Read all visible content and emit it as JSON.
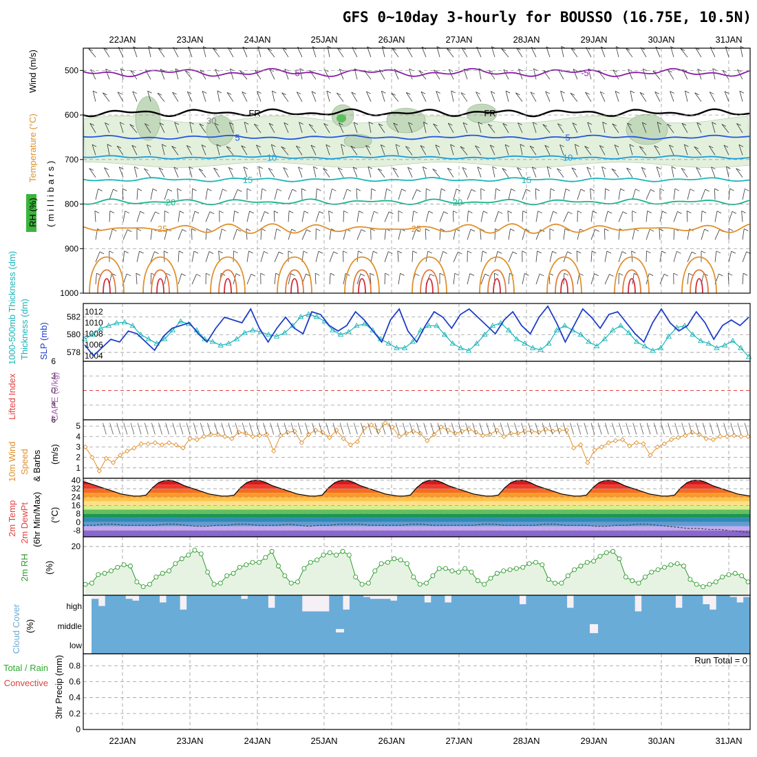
{
  "page": {
    "title": "GFS 0~10day 3-hourly for BOUSSO (16.75E, 10.5N)",
    "run_total": "Run Total = 0"
  },
  "colors": {
    "isobar_label": "#000000",
    "temp_blue": "#2255dd",
    "temp_purple": "#8a1aa8",
    "temp_orange": "#e0902a",
    "temp_red": "#d42a3a",
    "teal": "#19b4b8",
    "slp": "#1c3cc8",
    "wind": "#e0902a",
    "rh": "#2e9a2e",
    "cloud": "#6aacd8"
  },
  "chart_data": [
    {
      "id": "upper-air",
      "type": "contour",
      "title": "GFS 0~10day 3-hourly for BOUSSO (16.75E, 10.5N)",
      "xlabel": "",
      "x_categories": [
        "22JAN",
        "23JAN",
        "24JAN",
        "25JAN",
        "26JAN",
        "27JAN",
        "28JAN",
        "29JAN",
        "30JAN",
        "31JAN"
      ],
      "ylabel_parts": [
        "RH (%)",
        "Temperature (°C)",
        "Wind (m/s)",
        "(millibars)"
      ],
      "y_ticks": [
        500,
        600,
        700,
        800,
        900,
        1000
      ],
      "ylim": [
        1000,
        450
      ],
      "contours": [
        {
          "variable": "temperature",
          "value": -5,
          "label": "-5",
          "approx_level_mb": 505
        },
        {
          "variable": "temperature",
          "value": 0,
          "label": "FR",
          "approx_level_mb": 595
        },
        {
          "variable": "temperature",
          "value": 5,
          "label": "5",
          "approx_level_mb": 650
        },
        {
          "variable": "temperature",
          "value": 10,
          "label": "10",
          "approx_level_mb": 695
        },
        {
          "variable": "temperature",
          "value": 15,
          "label": "15",
          "approx_level_mb": 745
        },
        {
          "variable": "temperature",
          "value": 20,
          "label": "20",
          "approx_level_mb": 795
        },
        {
          "variable": "temperature",
          "value": 25,
          "label": "25",
          "approx_level_mb": 855
        }
      ],
      "rh_labels": [
        "30"
      ]
    },
    {
      "id": "thickness-slp",
      "type": "line",
      "left_axis_label": "1000-500mb Thickness (dm)",
      "right_axis_label": "SLP (mb)",
      "left_ticks": [
        578,
        580,
        582
      ],
      "right_ticks": [
        1004,
        1006,
        1008,
        1010,
        1012
      ],
      "left_ylim": [
        577,
        583.5
      ],
      "right_ylim": [
        1003,
        1013.5
      ],
      "series": [
        {
          "name": "1000-500mb Thickness (dm)",
          "axis": "left",
          "values": [
            579.5,
            580.0,
            580.7,
            581.0,
            581.3,
            581.4,
            581.0,
            580.0,
            579.5,
            579.0,
            579.5,
            580.5,
            581.5,
            581.2,
            580.5,
            579.5,
            579.2,
            578.8,
            579.0,
            579.5,
            580.2,
            580.5,
            580.3,
            580.0,
            579.8,
            580.2,
            581.0,
            582.0,
            582.3,
            582.0,
            581.5,
            580.5,
            580.0,
            580.3,
            581.0,
            581.2,
            580.5,
            579.5,
            579.0,
            578.5,
            578.5,
            579.2,
            580.5,
            581.0,
            581.0,
            580.0,
            579.0,
            578.5,
            578.2,
            579.0,
            580.0,
            581.0,
            581.3,
            580.5,
            579.5,
            579.0,
            578.5,
            578.3,
            579.0,
            580.5,
            581.0,
            580.5,
            580.0,
            579.2,
            578.7,
            579.5,
            580.5,
            581.0,
            580.2,
            579.2,
            578.7,
            578.2,
            578.5,
            579.8,
            580.8,
            581.0,
            580.0,
            579.3,
            579.0,
            578.5,
            578.8,
            579.3,
            578.5,
            577.5
          ]
        },
        {
          "name": "SLP (mb)",
          "axis": "right",
          "values": [
            1006.0,
            1004.0,
            1005.5,
            1007.0,
            1006.5,
            1008.5,
            1008.0,
            1006.5,
            1005.0,
            1007.5,
            1009.0,
            1009.5,
            1010.0,
            1008.0,
            1006.5,
            1009.0,
            1011.0,
            1010.5,
            1010.0,
            1012.5,
            1009.0,
            1006.5,
            1009.0,
            1011.0,
            1009.0,
            1008.0,
            1012.0,
            1011.5,
            1009.5,
            1008.5,
            1009.5,
            1012.0,
            1010.5,
            1008.5,
            1006.5,
            1010.5,
            1012.5,
            1008.5,
            1006.5,
            1009.5,
            1012.0,
            1011.0,
            1009.0,
            1011.5,
            1012.5,
            1011.0,
            1009.5,
            1008.0,
            1010.5,
            1012.0,
            1009.5,
            1008.0,
            1011.0,
            1013.0,
            1010.0,
            1006.5,
            1009.5,
            1012.5,
            1011.0,
            1009.0,
            1011.5,
            1012.0,
            1010.0,
            1008.0,
            1006.5,
            1010.0,
            1012.5,
            1010.0,
            1008.5,
            1009.5,
            1012.0,
            1010.0,
            1007.0,
            1009.5,
            1010.5,
            1009.5,
            1011.0
          ]
        }
      ]
    },
    {
      "id": "lifted-index-cape",
      "type": "line",
      "left_axis_label": "Lifted Index",
      "right_axis_label": "CAPE (J/kg)",
      "left_ticks": [
        -6,
        -3,
        0,
        3,
        6
      ],
      "left_tick_labels": [
        "6",
        "3",
        "0",
        "3",
        "6"
      ],
      "ylim": [
        -6,
        6
      ],
      "reference_line": 0,
      "series": []
    },
    {
      "id": "wind-10m",
      "type": "line",
      "ylabel": "10m Wind Speed & Barbs (m/s)",
      "y_ticks": [
        1,
        2,
        3,
        4,
        5
      ],
      "ylim": [
        0,
        5.6
      ],
      "series": [
        {
          "name": "10m Wind Speed (m/s)",
          "values": [
            3.0,
            2.0,
            0.7,
            1.9,
            1.5,
            2.2,
            2.6,
            2.9,
            3.3,
            3.3,
            3.4,
            3.2,
            3.4,
            3.2,
            2.9,
            3.8,
            3.7,
            4.0,
            4.2,
            4.2,
            4.0,
            3.8,
            4.4,
            4.3,
            4.0,
            4.1,
            4.2,
            2.6,
            4.1,
            4.4,
            4.5,
            3.4,
            4.2,
            4.6,
            4.4,
            3.9,
            4.6,
            3.8,
            3.2,
            3.5,
            4.8,
            5.1,
            4.5,
            5.3,
            4.9,
            4.0,
            4.3,
            4.5,
            4.3,
            3.6,
            4.2,
            4.9,
            4.6,
            4.3,
            4.5,
            4.7,
            4.4,
            4.1,
            4.2,
            4.6,
            4.0,
            4.3,
            4.3,
            4.5,
            4.5,
            4.4,
            4.7,
            4.5,
            4.6,
            4.6,
            2.9,
            3.2,
            1.5,
            2.7,
            3.0,
            3.4,
            3.6,
            3.7,
            3.1,
            3.4,
            3.3,
            2.2,
            3.0,
            3.3,
            3.7,
            3.9,
            4.1,
            4.4,
            4.2,
            3.8,
            3.7,
            4.0,
            4.0,
            4.1,
            4.0,
            4.0
          ]
        }
      ]
    },
    {
      "id": "temp-2m",
      "type": "area",
      "ylabel": "2m Temp 2m DewPt (6hr Min/Max) (°C)",
      "y_ticks": [
        -8,
        0,
        8,
        16,
        24,
        32,
        40
      ],
      "ylim": [
        -14,
        42
      ],
      "series": [
        {
          "name": "2m Temp (°C)",
          "values": [
            39,
            37,
            35,
            33,
            31,
            29,
            27,
            26,
            25,
            25,
            26,
            33,
            38,
            40,
            40,
            38,
            35,
            33,
            31,
            29,
            27,
            26,
            25,
            25,
            26,
            33,
            38,
            40,
            40,
            38,
            35,
            33,
            31,
            29,
            27,
            26,
            25,
            25,
            26,
            33,
            38,
            40,
            40,
            38,
            35,
            33,
            31,
            29,
            27,
            26,
            25,
            25,
            26,
            33,
            38,
            40,
            40,
            38,
            35,
            33,
            31,
            29,
            27,
            26,
            25,
            25,
            26,
            33,
            38,
            40,
            40,
            38,
            35,
            33,
            31,
            29,
            27,
            26,
            25,
            25,
            26,
            33,
            38,
            40,
            40,
            38,
            35,
            33,
            31,
            29,
            27,
            26,
            25,
            25,
            26,
            33,
            38,
            40,
            40,
            38,
            35,
            33,
            31,
            29,
            27,
            26,
            25
          ]
        },
        {
          "name": "2m DewPt (°C)",
          "values": [
            -3,
            -3,
            -2,
            -2,
            -3,
            -3,
            -3,
            -3,
            -2,
            -2,
            -3,
            -4,
            -4,
            -3,
            -3,
            -2,
            -2,
            -3,
            -3,
            -3,
            -2,
            -3,
            -4,
            -3,
            -3,
            -2,
            -2,
            -2,
            -3,
            -3,
            -3,
            -3,
            -2,
            -2,
            -3,
            -3,
            -3,
            -3,
            -3,
            -2,
            -2,
            -3,
            -3,
            -3,
            -3,
            -2,
            -2,
            -3,
            -3,
            -3,
            -4,
            -4,
            -3,
            -3,
            -2,
            -2,
            -3,
            -4,
            -5,
            -6,
            -6,
            -7,
            -7,
            -8,
            -9,
            -10
          ]
        }
      ]
    },
    {
      "id": "rh-2m",
      "type": "area",
      "ylabel": "2m RH (%)",
      "y_ticks": [
        20
      ],
      "ylim": [
        0,
        24
      ],
      "series": [
        {
          "name": "2m RH (%)",
          "values": [
            4.5,
            5.0,
            8.5,
            9.0,
            10.0,
            11.5,
            12.5,
            12.0,
            5.5,
            3.5,
            4.5,
            7.5,
            9.0,
            10.0,
            13.0,
            15.0,
            16.5,
            18.5,
            17.0,
            9.5,
            4.5,
            5.0,
            8.0,
            9.0,
            11.5,
            12.5,
            13.5,
            13.5,
            15.5,
            18.0,
            12.0,
            8.0,
            5.0,
            5.5,
            11.0,
            13.5,
            14.5,
            16.5,
            17.5,
            16.5,
            18.0,
            16.5,
            7.5,
            4.5,
            5.0,
            10.0,
            13.0,
            13.5,
            15.0,
            14.5,
            13.0,
            7.5,
            4.5,
            5.0,
            8.0,
            11.0,
            11.0,
            10.0,
            9.5,
            11.0,
            9.5,
            6.0,
            4.5,
            7.0,
            9.0,
            10.0,
            10.5,
            11.0,
            11.5,
            13.0,
            13.5,
            12.5,
            6.5,
            5.0,
            5.0,
            8.0,
            10.5,
            12.0,
            13.5,
            14.0,
            16.0,
            17.5,
            18.0,
            15.0,
            7.5,
            6.0,
            5.0,
            7.5,
            9.5,
            10.5,
            11.5,
            12.5,
            13.0,
            12.0,
            6.5,
            4.5,
            3.5,
            4.5,
            5.5,
            7.5,
            8.5,
            9.0,
            8.0,
            5.5
          ]
        }
      ]
    },
    {
      "id": "cloud-cover",
      "type": "bar",
      "ylabel": "Cloud Cover (%)",
      "categories": [
        "high",
        "middle",
        "low"
      ],
      "high_values": [
        80,
        40,
        100,
        100,
        100,
        80,
        70,
        100,
        100,
        100,
        60,
        100,
        100,
        20,
        100,
        100,
        100,
        100,
        100,
        100,
        100,
        100,
        80,
        100,
        100,
        100,
        30,
        100,
        100,
        100,
        100,
        10,
        10,
        10,
        10,
        100,
        100,
        20,
        100,
        100,
        90,
        80,
        80,
        80,
        70,
        100,
        100,
        100,
        100,
        60,
        100,
        100,
        60,
        100,
        100,
        100,
        100,
        100,
        100,
        100,
        100,
        100,
        100,
        50,
        100,
        100,
        100,
        100,
        100,
        100,
        30,
        100,
        100,
        100,
        100,
        100,
        100,
        100,
        100,
        100,
        10,
        100,
        100,
        100,
        100,
        100,
        30,
        100,
        100,
        100,
        50,
        20,
        100,
        100,
        90,
        60,
        90
      ],
      "middle_values": [
        100,
        100,
        100,
        100,
        100,
        100,
        100,
        100,
        100,
        100,
        100,
        100,
        100,
        100,
        100,
        100,
        100,
        100,
        100,
        100,
        100,
        100,
        100,
        100,
        100,
        100,
        100,
        100,
        100,
        100,
        100,
        100,
        100,
        100,
        100,
        100,
        100,
        100,
        100,
        100,
        100,
        100,
        100,
        100,
        100,
        100,
        100,
        100,
        100,
        100,
        100,
        100,
        100,
        100,
        100,
        100,
        100,
        100,
        100,
        100,
        100,
        100,
        100,
        100,
        100,
        100,
        100,
        100,
        100,
        100,
        100,
        100,
        100,
        100,
        100,
        100,
        100,
        100,
        100,
        100,
        100,
        100,
        100,
        100,
        100,
        100,
        100,
        100,
        100,
        100,
        100,
        100,
        100,
        100,
        100,
        100,
        100
      ],
      "low_values": [
        100,
        100,
        100,
        100,
        100,
        100,
        100,
        100,
        100,
        100,
        100,
        100,
        100,
        100,
        100,
        100,
        100,
        100,
        100,
        100,
        100,
        100,
        100,
        100,
        100,
        100,
        100,
        100,
        100,
        100,
        100,
        100,
        100,
        100,
        100,
        100,
        100,
        100,
        100,
        100,
        100,
        100,
        100,
        100,
        100,
        100,
        100,
        100,
        100,
        100,
        100,
        100,
        100,
        100,
        100,
        100,
        100,
        100,
        100,
        100,
        100,
        100,
        100,
        100,
        100,
        100,
        100,
        100,
        100,
        100,
        100,
        100,
        100,
        100,
        100,
        100,
        100,
        100,
        100,
        100,
        100,
        100,
        100,
        100,
        100,
        100,
        100,
        100,
        100,
        100,
        100,
        100,
        100,
        100,
        100,
        100,
        100
      ]
    },
    {
      "id": "precip-3hr",
      "type": "bar",
      "ylabel": "3hr Precip (mm)",
      "legend": [
        "Total / Rain",
        "Convective"
      ],
      "y_ticks": [
        0,
        0.2,
        0.4,
        0.6,
        0.8
      ],
      "ylim": [
        0,
        0.95
      ],
      "run_total": "Run Total = 0",
      "values": [],
      "x_categories": [
        "22JAN",
        "23JAN",
        "24JAN",
        "25JAN",
        "26JAN",
        "27JAN",
        "28JAN",
        "29JAN",
        "30JAN",
        "31JAN"
      ]
    }
  ]
}
